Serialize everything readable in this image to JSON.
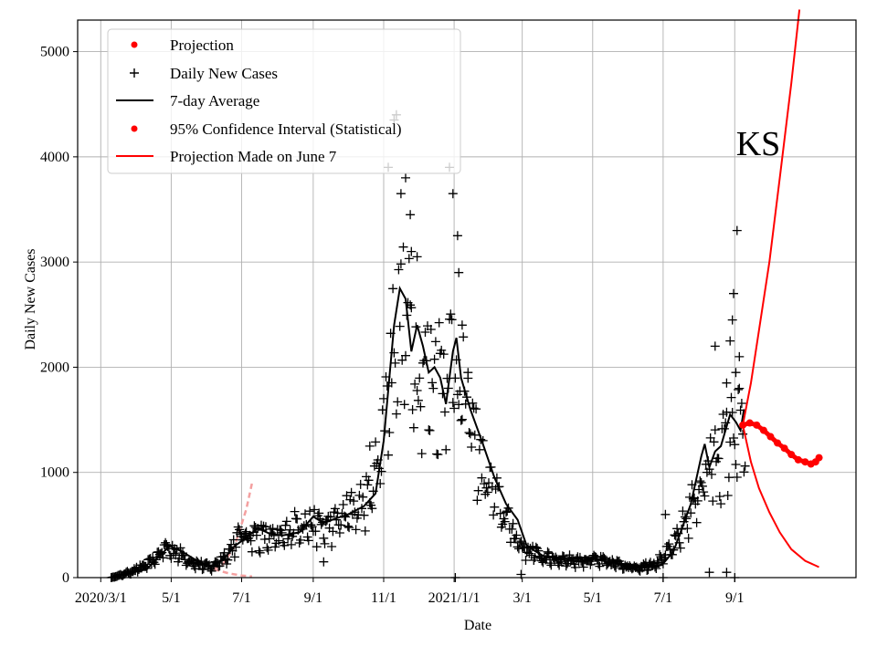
{
  "chart_data": {
    "type": "line",
    "title": "",
    "xlabel": "Date",
    "ylabel": "Daily New Cases",
    "annotation": "KS",
    "xlim": [
      "2020-02-10",
      "2021-12-15"
    ],
    "ylim": [
      0,
      5300
    ],
    "grid": true,
    "legend_position": "top-left",
    "x_ticks": [
      {
        "date": "2020-03-01",
        "label": "2020/3/1"
      },
      {
        "date": "2020-05-01",
        "label": "5/1"
      },
      {
        "date": "2020-07-01",
        "label": "7/1"
      },
      {
        "date": "2020-09-01",
        "label": "9/1"
      },
      {
        "date": "2020-11-01",
        "label": "11/1"
      },
      {
        "date": "2021-01-01",
        "label": "2021/1/1"
      },
      {
        "date": "2021-03-01",
        "label": "3/1"
      },
      {
        "date": "2021-05-01",
        "label": "5/1"
      },
      {
        "date": "2021-07-01",
        "label": "7/1"
      },
      {
        "date": "2021-09-01",
        "label": "9/1"
      }
    ],
    "y_ticks": [
      0,
      1000,
      2000,
      3000,
      4000,
      5000
    ],
    "legend": [
      {
        "label": "Projection",
        "kind": "dot",
        "color": "#ff0000"
      },
      {
        "label": "Daily New Cases",
        "kind": "plus",
        "color": "#000000"
      },
      {
        "label": "7-day Average",
        "kind": "line",
        "color": "#000000"
      },
      {
        "label": "95% Confidence Interval (Statistical)",
        "kind": "dot",
        "color": "#ff0000"
      },
      {
        "label": "Projection Made on June 7",
        "kind": "line",
        "color": "#ff0000"
      }
    ],
    "daily_new_cases_knots": [
      [
        "2020-03-10",
        0
      ],
      [
        "2020-03-20",
        30
      ],
      [
        "2020-04-01",
        80
      ],
      [
        "2020-04-15",
        160
      ],
      [
        "2020-04-25",
        300
      ],
      [
        "2020-05-05",
        260
      ],
      [
        "2020-05-20",
        150
      ],
      [
        "2020-06-05",
        100
      ],
      [
        "2020-06-20",
        250
      ],
      [
        "2020-07-01",
        450
      ],
      [
        "2020-07-15",
        420
      ],
      [
        "2020-08-01",
        380
      ],
      [
        "2020-08-20",
        550
      ],
      [
        "2020-09-01",
        520
      ],
      [
        "2020-09-15",
        500
      ],
      [
        "2020-10-01",
        650
      ],
      [
        "2020-10-20",
        800
      ],
      [
        "2020-11-01",
        1500
      ],
      [
        "2020-11-10",
        2400
      ],
      [
        "2020-11-20",
        2600
      ],
      [
        "2020-12-01",
        2100
      ],
      [
        "2020-12-15",
        2000
      ],
      [
        "2020-12-31",
        2200
      ],
      [
        "2021-01-10",
        1800
      ],
      [
        "2021-01-25",
        1100
      ],
      [
        "2021-02-10",
        700
      ],
      [
        "2021-03-01",
        300
      ],
      [
        "2021-03-20",
        200
      ],
      [
        "2021-04-15",
        170
      ],
      [
        "2021-05-01",
        180
      ],
      [
        "2021-05-20",
        140
      ],
      [
        "2021-06-10",
        100
      ],
      [
        "2021-06-25",
        150
      ],
      [
        "2021-07-10",
        300
      ],
      [
        "2021-07-25",
        700
      ],
      [
        "2021-08-05",
        1000
      ],
      [
        "2021-08-15",
        1200
      ],
      [
        "2021-08-25",
        1300
      ],
      [
        "2021-09-01",
        1500
      ],
      [
        "2021-09-10",
        1450
      ]
    ],
    "daily_new_cases_outliers": [
      [
        "2020-11-05",
        3900
      ],
      [
        "2020-11-10",
        4350
      ],
      [
        "2020-11-12",
        4400
      ],
      [
        "2020-11-16",
        3650
      ],
      [
        "2020-11-20",
        3800
      ],
      [
        "2020-11-24",
        3450
      ],
      [
        "2020-11-25",
        3100
      ],
      [
        "2020-11-30",
        3050
      ],
      [
        "2020-12-28",
        3900
      ],
      [
        "2020-12-31",
        3650
      ],
      [
        "2021-01-04",
        3250
      ],
      [
        "2021-01-05",
        2900
      ],
      [
        "2021-01-08",
        2400
      ],
      [
        "2021-01-13",
        1950
      ],
      [
        "2021-08-15",
        2200
      ],
      [
        "2021-08-25",
        1850
      ],
      [
        "2021-08-28",
        2250
      ],
      [
        "2021-08-31",
        2700
      ],
      [
        "2021-09-03",
        3300
      ],
      [
        "2021-09-05",
        2100
      ],
      [
        "2021-09-02",
        1950
      ],
      [
        "2021-08-30",
        2450
      ],
      [
        "2020-10-20",
        1250
      ],
      [
        "2020-09-10",
        150
      ],
      [
        "2021-01-02",
        0
      ],
      [
        "2021-02-28",
        30
      ],
      [
        "2021-07-01",
        0
      ],
      [
        "2021-08-10",
        50
      ],
      [
        "2021-08-25",
        50
      ],
      [
        "2021-09-01",
        0
      ],
      [
        "2021-07-03",
        600
      ]
    ],
    "seven_day_average": [
      [
        "2020-03-10",
        0
      ],
      [
        "2020-03-25",
        40
      ],
      [
        "2020-04-10",
        80
      ],
      [
        "2020-04-20",
        200
      ],
      [
        "2020-04-30",
        300
      ],
      [
        "2020-05-10",
        250
      ],
      [
        "2020-05-25",
        150
      ],
      [
        "2020-06-05",
        110
      ],
      [
        "2020-06-15",
        170
      ],
      [
        "2020-06-25",
        300
      ],
      [
        "2020-07-05",
        380
      ],
      [
        "2020-07-15",
        470
      ],
      [
        "2020-07-25",
        420
      ],
      [
        "2020-08-05",
        400
      ],
      [
        "2020-08-20",
        430
      ],
      [
        "2020-09-01",
        580
      ],
      [
        "2020-09-10",
        520
      ],
      [
        "2020-09-20",
        560
      ],
      [
        "2020-10-01",
        600
      ],
      [
        "2020-10-15",
        680
      ],
      [
        "2020-10-25",
        800
      ],
      [
        "2020-11-01",
        1300
      ],
      [
        "2020-11-10",
        2400
      ],
      [
        "2020-11-15",
        2750
      ],
      [
        "2020-11-20",
        2650
      ],
      [
        "2020-11-25",
        2150
      ],
      [
        "2020-11-30",
        2400
      ],
      [
        "2020-12-05",
        2200
      ],
      [
        "2020-12-10",
        1950
      ],
      [
        "2020-12-15",
        2000
      ],
      [
        "2020-12-20",
        1900
      ],
      [
        "2020-12-25",
        1650
      ],
      [
        "2020-12-31",
        2150
      ],
      [
        "2021-01-03",
        2280
      ],
      [
        "2021-01-07",
        1900
      ],
      [
        "2021-01-15",
        1600
      ],
      [
        "2021-01-25",
        1300
      ],
      [
        "2021-02-05",
        950
      ],
      [
        "2021-02-15",
        700
      ],
      [
        "2021-02-25",
        550
      ],
      [
        "2021-03-05",
        300
      ],
      [
        "2021-03-20",
        200
      ],
      [
        "2021-04-10",
        180
      ],
      [
        "2021-04-25",
        190
      ],
      [
        "2021-05-05",
        170
      ],
      [
        "2021-05-20",
        140
      ],
      [
        "2021-06-05",
        120
      ],
      [
        "2021-06-20",
        100
      ],
      [
        "2021-06-30",
        120
      ],
      [
        "2021-07-10",
        250
      ],
      [
        "2021-07-25",
        700
      ],
      [
        "2021-08-03",
        1150
      ],
      [
        "2021-08-06",
        1270
      ],
      [
        "2021-08-10",
        1050
      ],
      [
        "2021-08-15",
        1200
      ],
      [
        "2021-08-20",
        1250
      ],
      [
        "2021-08-28",
        1550
      ],
      [
        "2021-09-02",
        1480
      ],
      [
        "2021-09-06",
        1400
      ],
      [
        "2021-09-09",
        1600
      ]
    ],
    "projection_dots": [
      [
        "2021-09-08",
        1450
      ],
      [
        "2021-09-14",
        1470
      ],
      [
        "2021-09-20",
        1450
      ],
      [
        "2021-09-26",
        1400
      ],
      [
        "2021-10-02",
        1340
      ],
      [
        "2021-10-08",
        1280
      ],
      [
        "2021-10-14",
        1230
      ],
      [
        "2021-10-20",
        1170
      ],
      [
        "2021-10-26",
        1120
      ],
      [
        "2021-11-01",
        1100
      ],
      [
        "2021-11-06",
        1080
      ],
      [
        "2021-11-10",
        1100
      ],
      [
        "2021-11-13",
        1140
      ]
    ],
    "ci_upper": [
      [
        "2021-09-08",
        1450
      ],
      [
        "2021-09-15",
        1850
      ],
      [
        "2021-09-22",
        2350
      ],
      [
        "2021-10-01",
        3000
      ],
      [
        "2021-10-10",
        3800
      ],
      [
        "2021-10-20",
        4700
      ],
      [
        "2021-10-27",
        5400
      ]
    ],
    "ci_lower": [
      [
        "2021-09-08",
        1450
      ],
      [
        "2021-09-15",
        1100
      ],
      [
        "2021-09-22",
        850
      ],
      [
        "2021-10-01",
        620
      ],
      [
        "2021-10-10",
        430
      ],
      [
        "2021-10-20",
        270
      ],
      [
        "2021-11-01",
        160
      ],
      [
        "2021-11-13",
        100
      ]
    ],
    "projection_june7": [
      [
        "2020-06-07",
        80
      ],
      [
        "2020-06-15",
        130
      ],
      [
        "2020-06-25",
        300
      ],
      [
        "2020-07-05",
        650
      ],
      [
        "2020-07-10",
        900
      ]
    ],
    "projection_june7_lower": [
      [
        "2020-06-07",
        80
      ],
      [
        "2020-06-20",
        40
      ],
      [
        "2020-07-01",
        20
      ],
      [
        "2020-07-10",
        10
      ]
    ]
  },
  "colors": {
    "cases": "#000000",
    "average": "#000000",
    "projection": "#ff0000",
    "faded_projection": "#f4a0a0",
    "grid": "#b0b0b0",
    "legend_border": "#cccccc"
  }
}
